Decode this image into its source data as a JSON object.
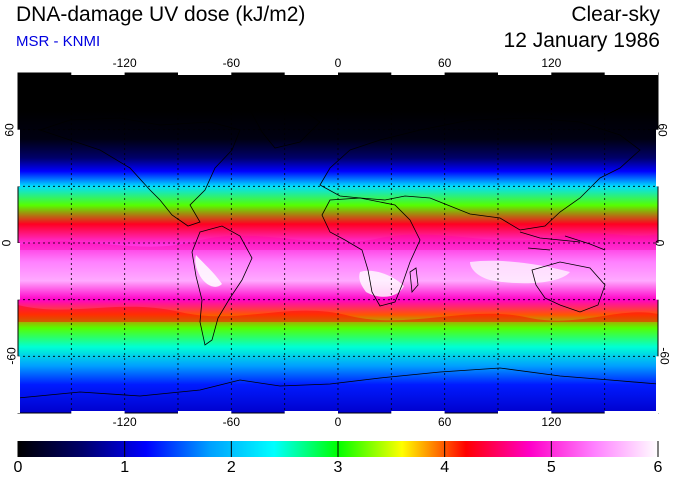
{
  "title": "DNA-damage UV dose (kJ/m2)",
  "subtitle": "MSR - KNMI",
  "condition": "Clear-sky",
  "date": "12 January 1986",
  "map": {
    "lon_ticks": [
      -120,
      -60,
      0,
      60,
      120
    ],
    "lon_labels": [
      "-120",
      "-60",
      "0",
      "60",
      "120"
    ],
    "lat_ticks": [
      60,
      0,
      -60
    ],
    "lat_labels": [
      "60",
      "0",
      "-60"
    ],
    "lon_range": [
      -180,
      180
    ],
    "lat_range": [
      -90,
      90
    ]
  },
  "chart_data": {
    "type": "heatmap",
    "title": "DNA-damage UV dose (kJ/m2)",
    "variable": "DNA-damage UV dose",
    "units": "kJ/m2",
    "colorbar": {
      "min": 0,
      "max": 6,
      "labels": [
        "0",
        "1",
        "2",
        "3",
        "4",
        "5",
        "6"
      ],
      "colors": [
        "#000000",
        "#00006a",
        "#0000ff",
        "#00a0ff",
        "#00ffff",
        "#00ff00",
        "#ffff00",
        "#ff0000",
        "#ff00c8",
        "#ff80ff",
        "#ffffff"
      ]
    },
    "zonal_profile": [
      {
        "lat": 90,
        "value": 0.0
      },
      {
        "lat": 70,
        "value": 0.0
      },
      {
        "lat": 55,
        "value": 0.1
      },
      {
        "lat": 45,
        "value": 0.6
      },
      {
        "lat": 38,
        "value": 1.2
      },
      {
        "lat": 30,
        "value": 2.2
      },
      {
        "lat": 20,
        "value": 3.2
      },
      {
        "lat": 10,
        "value": 4.3
      },
      {
        "lat": 0,
        "value": 5.0
      },
      {
        "lat": -10,
        "value": 5.4
      },
      {
        "lat": -20,
        "value": 5.6
      },
      {
        "lat": -30,
        "value": 4.8
      },
      {
        "lat": -38,
        "value": 4.0
      },
      {
        "lat": -45,
        "value": 3.2
      },
      {
        "lat": -55,
        "value": 2.5
      },
      {
        "lat": -65,
        "value": 1.8
      },
      {
        "lat": -75,
        "value": 1.3
      },
      {
        "lat": -90,
        "value": 1.0
      }
    ]
  }
}
